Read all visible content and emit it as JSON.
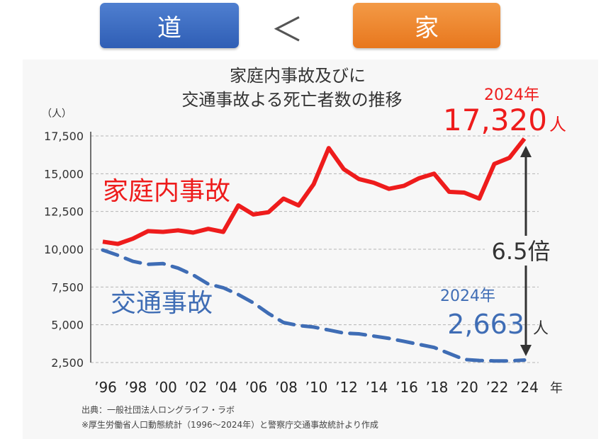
{
  "header": {
    "left_label": "道",
    "comparator": "＜",
    "right_label": "家",
    "colors": {
      "left": "#3a68c1",
      "right": "#ef8a33"
    }
  },
  "chart_data": {
    "type": "line",
    "title_line1": "家庭内事故及びに",
    "title_line2": "交通事故よる死亡者数の推移",
    "ylabel": "（人）",
    "xlabel": "年",
    "ylim": [
      2500,
      17500
    ],
    "yticks": [
      2500,
      5000,
      7500,
      10000,
      12500,
      15000,
      17500
    ],
    "ytick_labels": [
      "2,500",
      "5,000",
      "7,500",
      "10,000",
      "12,500",
      "15,000",
      "17,500"
    ],
    "x": [
      1996,
      1997,
      1998,
      1999,
      2000,
      2001,
      2002,
      2003,
      2004,
      2005,
      2006,
      2007,
      2008,
      2009,
      2010,
      2011,
      2012,
      2013,
      2014,
      2015,
      2016,
      2017,
      2018,
      2019,
      2020,
      2021,
      2022,
      2023,
      2024
    ],
    "xtick_labels": [
      "’96",
      "’98",
      "’00",
      "’02",
      "’04",
      "’06",
      "’08",
      "’10",
      "’12",
      "’14",
      "’16",
      "’18",
      "’20",
      "’22",
      "’24"
    ],
    "series": [
      {
        "name": "家庭内事故",
        "color": "#ee1c1c",
        "style": "solid",
        "values": [
          10500,
          10350,
          10700,
          11200,
          11150,
          11250,
          11100,
          11350,
          11150,
          12900,
          12300,
          12450,
          13350,
          12900,
          14300,
          16700,
          15300,
          14650,
          14400,
          14000,
          14200,
          14700,
          15000,
          13800,
          13750,
          13350,
          15650,
          16050,
          17320
        ]
      },
      {
        "name": "交通事故",
        "color": "#3f6db5",
        "style": "dashed",
        "values": [
          9950,
          9600,
          9200,
          9000,
          9050,
          8750,
          8300,
          7700,
          7450,
          7000,
          6450,
          5750,
          5150,
          4950,
          4850,
          4650,
          4450,
          4400,
          4250,
          4100,
          3900,
          3700,
          3500,
          3100,
          2700,
          2636,
          2610,
          2610,
          2663
        ]
      }
    ],
    "annotations": {
      "home_year": "2024年",
      "home_value": "17,320",
      "home_unit": "人",
      "road_year": "2024年",
      "road_value": "2,663",
      "road_unit": "人",
      "ratio": "6.5倍"
    },
    "grid": true
  },
  "source": {
    "line1": "出典：一般社団法人ロングライフ・ラボ",
    "line2": "※厚生労働省人口動態統計（1996～2024年）と警察庁交通事故統計より作成"
  }
}
